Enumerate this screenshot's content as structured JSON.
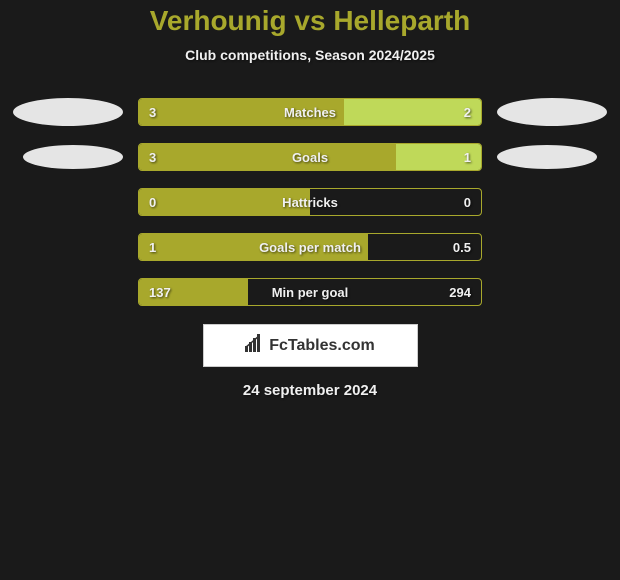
{
  "header": {
    "title": "Verhounig vs Helleparth",
    "subtitle": "Club competitions, Season 2024/2025",
    "title_color": "#a8a82c",
    "title_fontsize": 28
  },
  "stats": [
    {
      "name": "Matches",
      "left_value": "3",
      "right_value": "2",
      "left_percent": 60,
      "right_percent": 40,
      "show_ellipses": true,
      "ellipse_size": "large"
    },
    {
      "name": "Goals",
      "left_value": "3",
      "right_value": "1",
      "left_percent": 75,
      "right_percent": 25,
      "show_ellipses": true,
      "ellipse_size": "small"
    },
    {
      "name": "Hattricks",
      "left_value": "0",
      "right_value": "0",
      "left_percent": 50,
      "right_percent": 0,
      "show_ellipses": false
    },
    {
      "name": "Goals per match",
      "left_value": "1",
      "right_value": "0.5",
      "left_percent": 67,
      "right_percent": 0,
      "show_ellipses": false
    },
    {
      "name": "Min per goal",
      "left_value": "137",
      "right_value": "294",
      "left_percent": 32,
      "right_percent": 0,
      "show_ellipses": false
    }
  ],
  "colors": {
    "primary": "#a8a82c",
    "secondary": "#bfd959",
    "background": "#1a1a1a",
    "text": "#f0f0f0",
    "ellipse": "#e5e5e5"
  },
  "footer": {
    "logo_text": "FcTables.com",
    "date": "24 september 2024"
  }
}
